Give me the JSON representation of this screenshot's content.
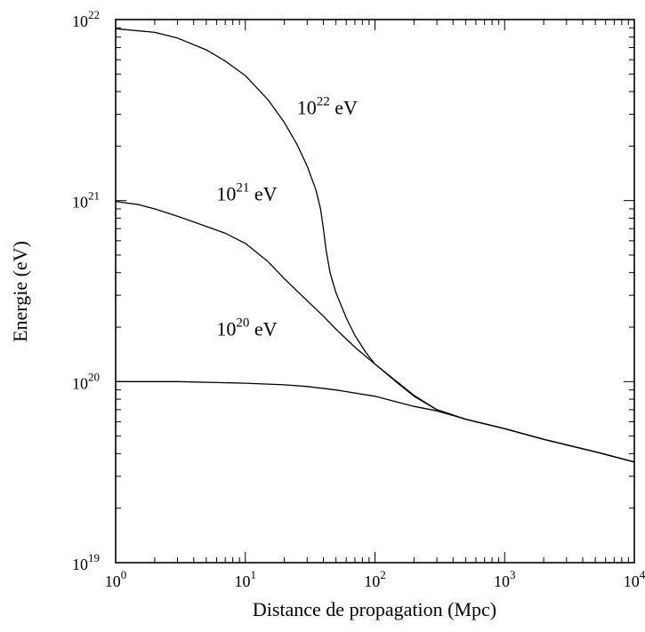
{
  "chart_data": {
    "type": "line",
    "xlabel": "Distance de propagation (Mpc)",
    "ylabel": "Energie (eV)",
    "xscale": "log",
    "yscale": "log",
    "xlim": [
      1,
      10000
    ],
    "ylim": [
      1e+19,
      1e+22
    ],
    "grid": false,
    "x_ticks": [
      {
        "base": "10",
        "exp": "0",
        "value": 1
      },
      {
        "base": "10",
        "exp": "1",
        "value": 10
      },
      {
        "base": "10",
        "exp": "2",
        "value": 100
      },
      {
        "base": "10",
        "exp": "3",
        "value": 1000
      },
      {
        "base": "10",
        "exp": "4",
        "value": 10000
      }
    ],
    "y_ticks": [
      {
        "base": "10",
        "exp": "19",
        "value": 1e+19
      },
      {
        "base": "10",
        "exp": "20",
        "value": 1e+20
      },
      {
        "base": "10",
        "exp": "21",
        "value": 1e+21
      },
      {
        "base": "10",
        "exp": "22",
        "value": 1e+22
      }
    ],
    "series": [
      {
        "label_base": "10",
        "label_exp": "22",
        "label_unit": "eV",
        "label_at": {
          "x": 25,
          "y": 3e+21
        },
        "points": [
          [
            1,
            8.9e+21
          ],
          [
            2,
            8.5e+21
          ],
          [
            3,
            7.9e+21
          ],
          [
            5,
            6.8e+21
          ],
          [
            7,
            5.9e+21
          ],
          [
            10,
            4.9e+21
          ],
          [
            15,
            3.6e+21
          ],
          [
            20,
            2.7e+21
          ],
          [
            25,
            2.05e+21
          ],
          [
            30,
            1.55e+21
          ],
          [
            35,
            1.15e+21
          ],
          [
            38,
            9e+20
          ],
          [
            40,
            7e+20
          ],
          [
            42,
            5.3e+20
          ],
          [
            45,
            4e+20
          ],
          [
            50,
            3.1e+20
          ],
          [
            60,
            2.25e+20
          ],
          [
            70,
            1.8e+20
          ],
          [
            85,
            1.45e+20
          ],
          [
            100,
            1.25e+20
          ],
          [
            150,
            9.8e+19
          ],
          [
            200,
            8.3e+19
          ],
          [
            300,
            7e+19
          ],
          [
            500,
            6.2e+19
          ],
          [
            1000,
            5.5e+19
          ],
          [
            2000,
            4.8e+19
          ],
          [
            5000,
            4.1e+19
          ],
          [
            10000,
            3.6e+19
          ]
        ]
      },
      {
        "label_base": "10",
        "label_exp": "21",
        "label_unit": "eV",
        "label_at": {
          "x": 6,
          "y": 1e+21
        },
        "points": [
          [
            1,
            9.9e+20
          ],
          [
            1.5,
            9.5e+20
          ],
          [
            2,
            9e+20
          ],
          [
            3,
            8.2e+20
          ],
          [
            5,
            7.2e+20
          ],
          [
            7,
            6.6e+20
          ],
          [
            10,
            5.8e+20
          ],
          [
            15,
            4.6e+20
          ],
          [
            20,
            3.7e+20
          ],
          [
            30,
            2.8e+20
          ],
          [
            40,
            2.3e+20
          ],
          [
            50,
            1.95e+20
          ],
          [
            70,
            1.55e+20
          ],
          [
            100,
            1.25e+20
          ],
          [
            150,
            9.9e+19
          ],
          [
            200,
            8.4e+19
          ],
          [
            300,
            7e+19
          ],
          [
            500,
            6.2e+19
          ],
          [
            1000,
            5.5e+19
          ],
          [
            2000,
            4.8e+19
          ],
          [
            5000,
            4.1e+19
          ],
          [
            10000,
            3.6e+19
          ]
        ]
      },
      {
        "label_base": "10",
        "label_exp": "20",
        "label_unit": "eV",
        "label_at": {
          "x": 6,
          "y": 1.8e+20
        },
        "points": [
          [
            1,
            1e+20
          ],
          [
            3,
            1e+20
          ],
          [
            10,
            9.8e+19
          ],
          [
            20,
            9.6e+19
          ],
          [
            30,
            9.4e+19
          ],
          [
            50,
            9e+19
          ],
          [
            100,
            8.3e+19
          ],
          [
            150,
            7.7e+19
          ],
          [
            200,
            7.3e+19
          ],
          [
            300,
            6.9e+19
          ],
          [
            500,
            6.2e+19
          ],
          [
            1000,
            5.5e+19
          ],
          [
            2000,
            4.8e+19
          ],
          [
            5000,
            4.1e+19
          ],
          [
            10000,
            3.6e+19
          ]
        ]
      }
    ]
  }
}
